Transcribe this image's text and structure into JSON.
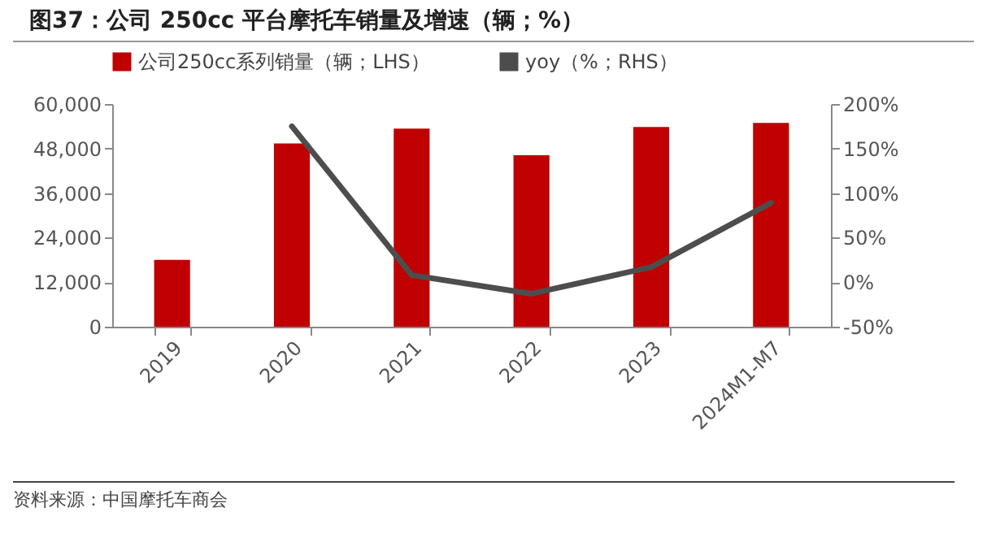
{
  "chart_data": {
    "type": "bar",
    "title": "图37：公司 250cc 平台摩托车销量及增速（辆；%）",
    "categories": [
      "2019",
      "2020",
      "2021",
      "2022",
      "2023",
      "2024M1-M7"
    ],
    "series": [
      {
        "name": "公司250cc系列销量（辆；LHS）",
        "color": "#c00000",
        "values": [
          18000,
          49400,
          53400,
          46200,
          53800,
          54900
        ]
      },
      {
        "name": "yoy（%；RHS）",
        "type": "line",
        "axis": "y2",
        "color": "#4d4d4d",
        "values": [
          null,
          175,
          8,
          -13,
          17,
          89
        ]
      }
    ],
    "ylim": [
      0,
      60000
    ],
    "yticks": [
      {
        "value": 0,
        "label": "0"
      },
      {
        "value": 12000,
        "label": "12,000"
      },
      {
        "value": 24000,
        "label": "24,000"
      },
      {
        "value": 36000,
        "label": "36,000"
      },
      {
        "value": 48000,
        "label": "48,000"
      },
      {
        "value": 60000,
        "label": "60,000"
      }
    ],
    "y2lim": [
      -50,
      200
    ],
    "y2ticks": [
      {
        "value": -50,
        "label": "-50%"
      },
      {
        "value": 0,
        "label": "0%"
      },
      {
        "value": 50,
        "label": "50%"
      },
      {
        "value": 100,
        "label": "100%"
      },
      {
        "value": 150,
        "label": "150%"
      },
      {
        "value": 200,
        "label": "200%"
      }
    ],
    "legend": "top",
    "grid": false,
    "annotations": [
      "资料来源：中国摩托车商会"
    ]
  }
}
